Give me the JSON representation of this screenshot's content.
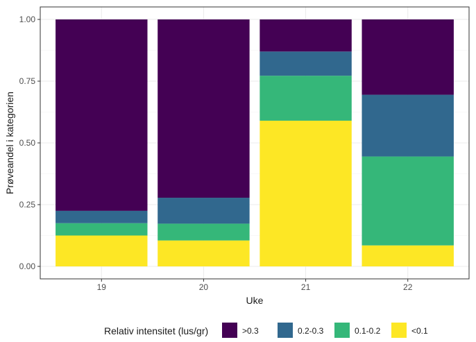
{
  "chart_data": {
    "type": "bar",
    "stacked": true,
    "title": "",
    "xlabel": "Uke",
    "ylabel": "Prøveandel i kategorien",
    "categories": [
      "19",
      "20",
      "21",
      "22"
    ],
    "ylim": [
      0,
      1
    ],
    "y_ticks": [
      "0.00",
      "0.25",
      "0.50",
      "0.75",
      "1.00"
    ],
    "y_tick_values": [
      0,
      0.25,
      0.5,
      0.75,
      1
    ],
    "grid": true,
    "legend": {
      "title": "Relativ intensitet (lus/gr)",
      "position": "bottom",
      "entries": [
        ">0.3",
        "0.2-0.3",
        "0.1-0.2",
        "<0.1"
      ]
    },
    "series": [
      {
        "name": "<0.1",
        "color": "#FDE725",
        "values": [
          0.125,
          0.105,
          0.59,
          0.085
        ]
      },
      {
        "name": "0.1-0.2",
        "color": "#35B779",
        "values": [
          0.05,
          0.068,
          0.182,
          0.36
        ]
      },
      {
        "name": "0.2-0.3",
        "color": "#31688E",
        "values": [
          0.05,
          0.105,
          0.098,
          0.25
        ]
      },
      {
        "name": ">0.3",
        "color": "#440154",
        "values": [
          0.775,
          0.722,
          0.13,
          0.305
        ]
      }
    ]
  }
}
